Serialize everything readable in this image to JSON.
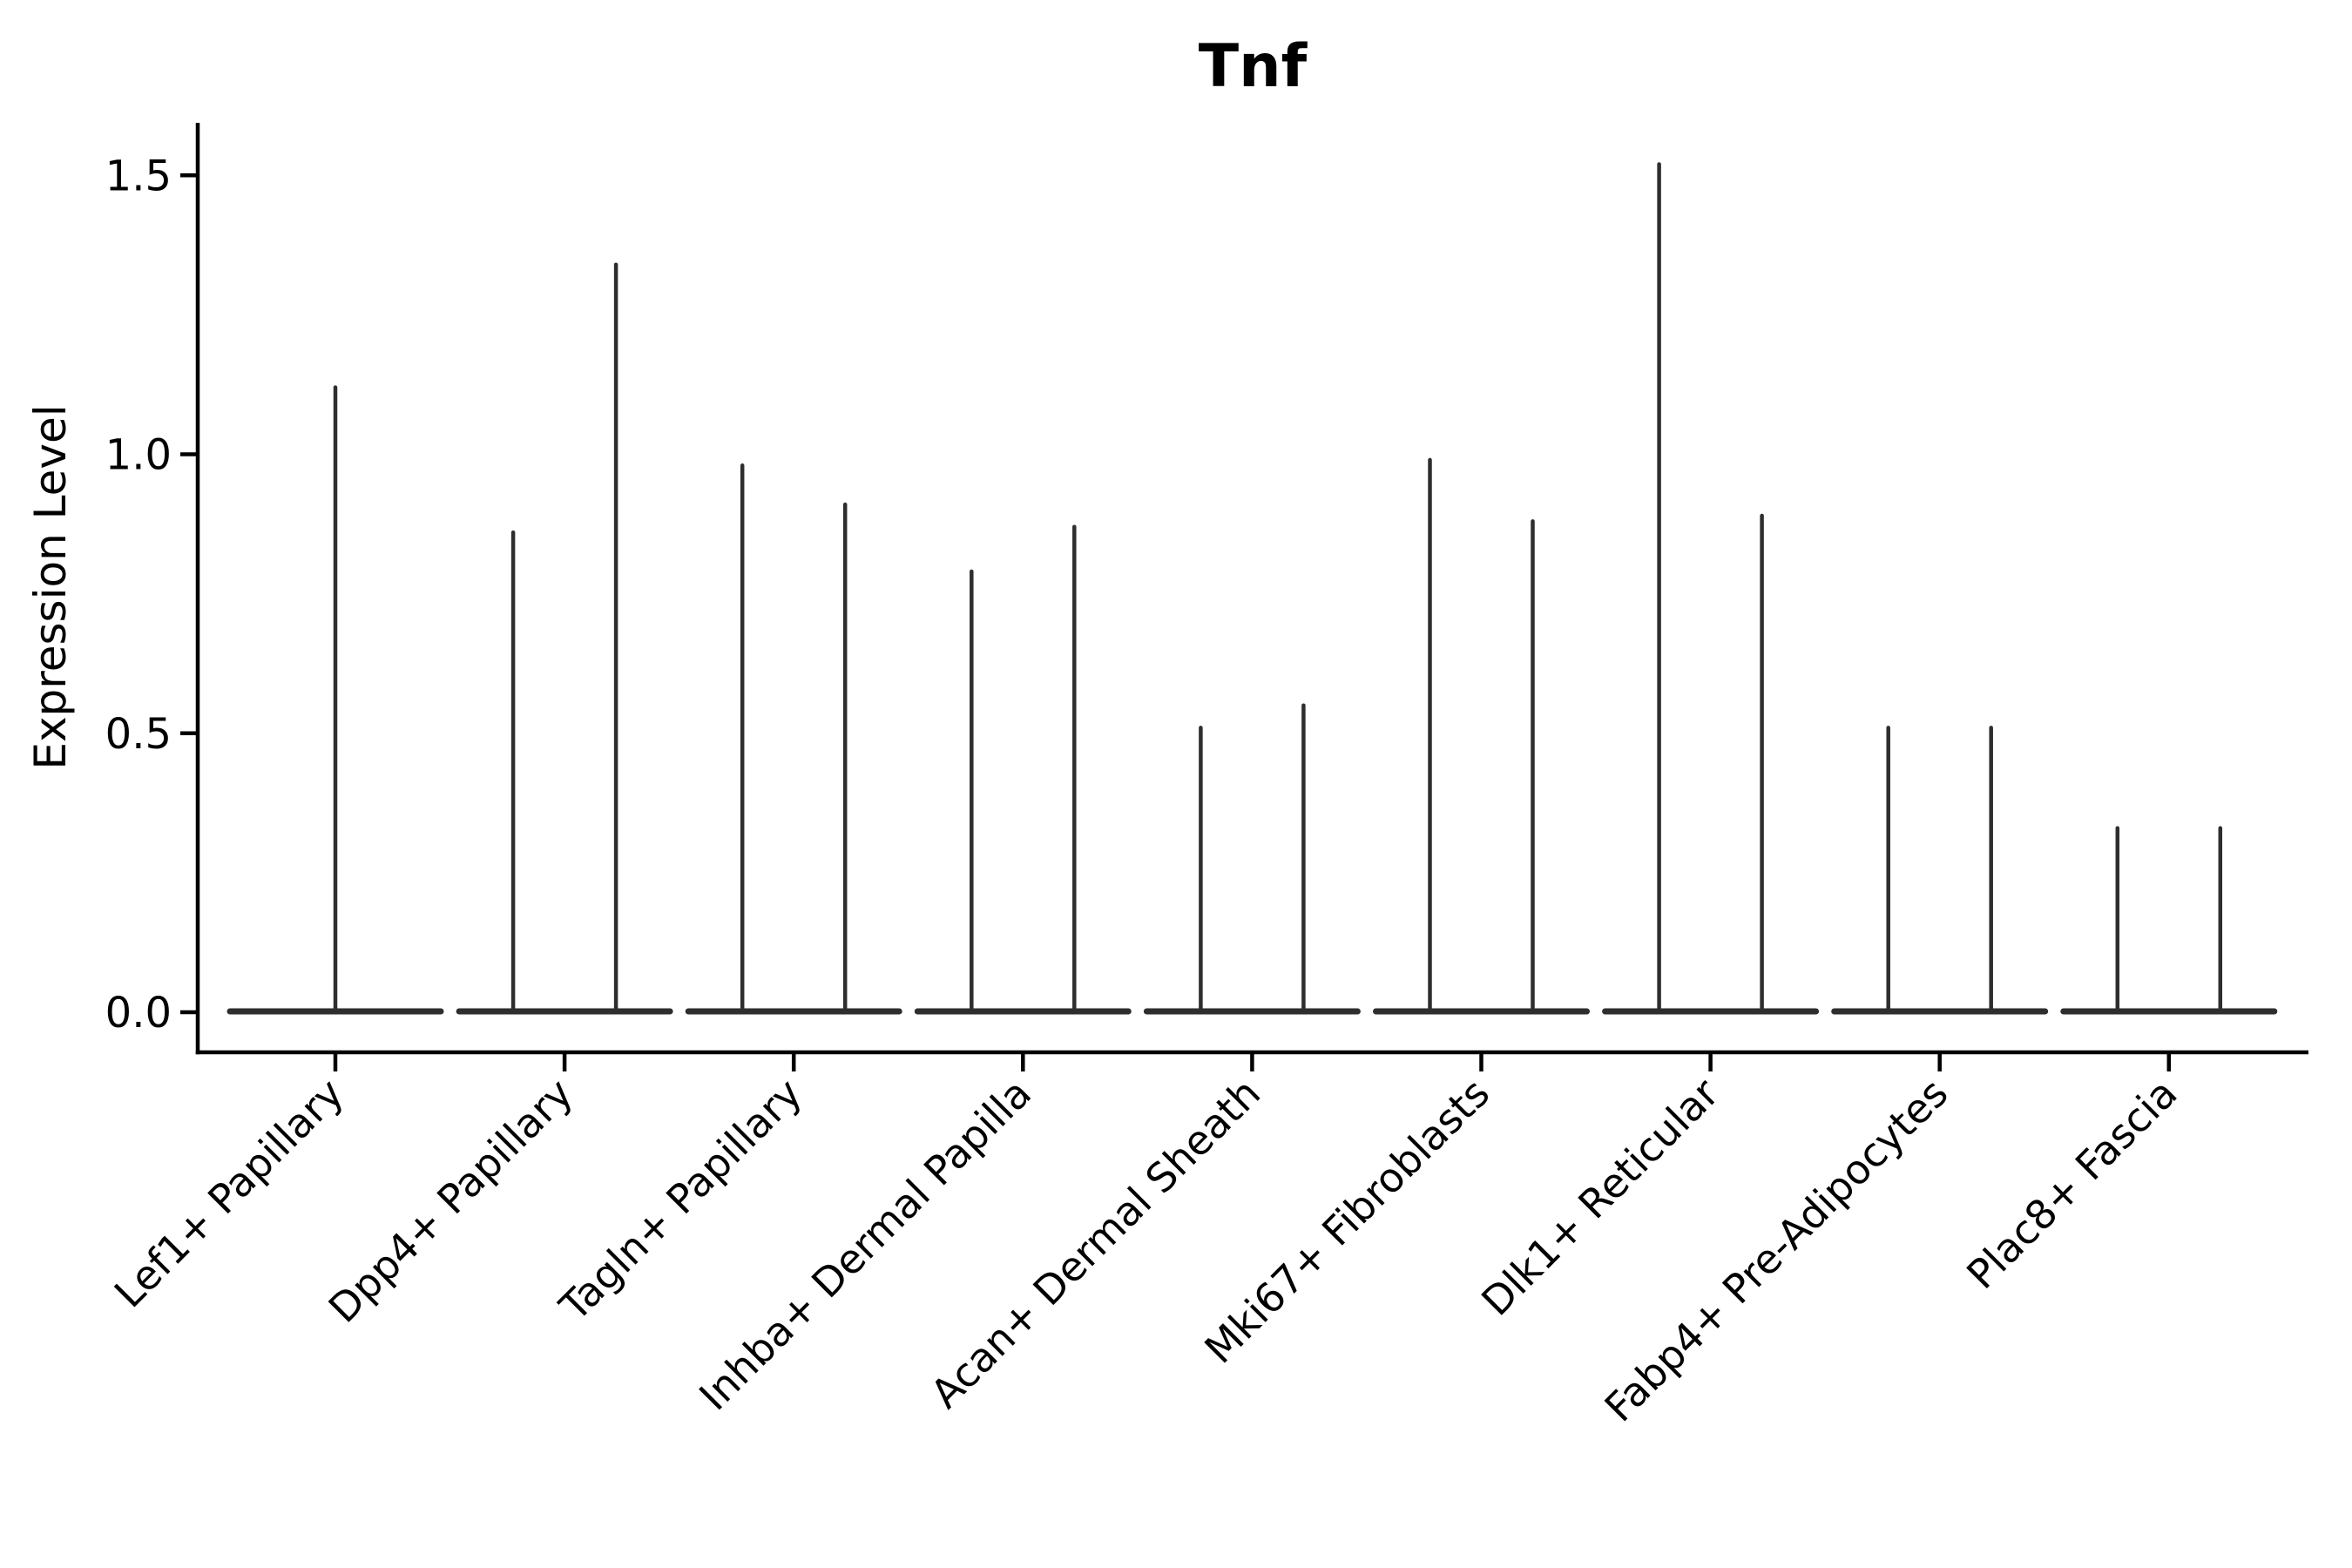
{
  "figure": {
    "title": "Tnf",
    "background": "#ffffff"
  },
  "chart_data": {
    "type": "violin",
    "title": "Tnf",
    "xlabel": "",
    "ylabel": "Expression Level",
    "ylim": [
      0.0,
      1.58
    ],
    "yticks": [
      0.0,
      0.5,
      1.0,
      1.5
    ],
    "ytick_labels": [
      "0.0",
      "0.5",
      "1.0",
      "1.5"
    ],
    "grid": false,
    "legend": "none",
    "baseline_value": 0.0,
    "categories": [
      "Lef1+ Papillary",
      "Dpp4+ Papillary",
      "Tagln+ Papillary",
      "Inhba+ Dermal Papilla",
      "Acan+ Dermal Sheath",
      "Mki67+ Fibroblasts",
      "Dlk1+ Reticular",
      "Fabp4+ Pre-Adipocytes",
      "Plac8+ Fascia"
    ],
    "violins": [
      {
        "category": "Lef1+ Papillary",
        "max_expression": [
          1.12
        ]
      },
      {
        "category": "Dpp4+ Papillary",
        "max_expression": [
          0.86,
          1.34
        ]
      },
      {
        "category": "Tagln+ Papillary",
        "max_expression": [
          0.98,
          0.91
        ]
      },
      {
        "category": "Inhba+ Dermal Papilla",
        "max_expression": [
          0.79,
          0.87
        ]
      },
      {
        "category": "Acan+ Dermal Sheath",
        "max_expression": [
          0.51,
          0.55
        ]
      },
      {
        "category": "Mki67+ Fibroblasts",
        "max_expression": [
          0.99,
          0.88
        ]
      },
      {
        "category": "Dlk1+ Reticular",
        "max_expression": [
          1.52,
          0.89
        ]
      },
      {
        "category": "Fabp4+ Pre-Adipocytes",
        "max_expression": [
          0.51,
          0.51
        ]
      },
      {
        "category": "Plac8+ Fascia",
        "max_expression": [
          0.33,
          0.33
        ]
      }
    ],
    "style": {
      "line_color": "#2e2e2e",
      "axis_color": "#000000",
      "text_color": "#000000",
      "background": "#ffffff"
    }
  }
}
